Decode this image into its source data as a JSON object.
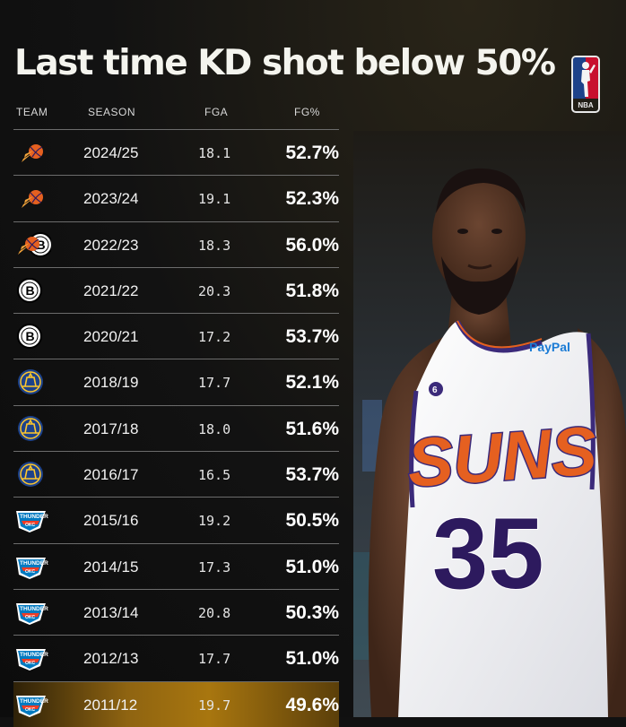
{
  "title": "Last time KD shot below 50%",
  "badge": {
    "text": "NBA",
    "icon": "nba-logo-icon"
  },
  "headers": {
    "team": "TEAM",
    "season": "SEASON",
    "fga": "FGA",
    "fg": "FG%"
  },
  "rows": [
    {
      "team": "suns",
      "season": "2024/25",
      "fga": "18.1",
      "fg": "52.7%"
    },
    {
      "team": "suns",
      "season": "2023/24",
      "fga": "19.1",
      "fg": "52.3%"
    },
    {
      "team": "suns-nets",
      "season": "2022/23",
      "fga": "18.3",
      "fg": "56.0%"
    },
    {
      "team": "nets",
      "season": "2021/22",
      "fga": "20.3",
      "fg": "51.8%"
    },
    {
      "team": "nets",
      "season": "2020/21",
      "fga": "17.2",
      "fg": "53.7%"
    },
    {
      "team": "warriors",
      "season": "2018/19",
      "fga": "17.7",
      "fg": "52.1%"
    },
    {
      "team": "warriors",
      "season": "2017/18",
      "fga": "18.0",
      "fg": "51.6%"
    },
    {
      "team": "warriors",
      "season": "2016/17",
      "fga": "16.5",
      "fg": "53.7%"
    },
    {
      "team": "thunder",
      "season": "2015/16",
      "fga": "19.2",
      "fg": "50.5%"
    },
    {
      "team": "thunder",
      "season": "2014/15",
      "fga": "17.3",
      "fg": "51.0%"
    },
    {
      "team": "thunder",
      "season": "2013/14",
      "fga": "20.8",
      "fg": "50.3%"
    },
    {
      "team": "thunder",
      "season": "2012/13",
      "fga": "17.7",
      "fg": "51.0%"
    },
    {
      "team": "thunder",
      "season": "2011/12",
      "fga": "19.7",
      "fg": "49.6%",
      "highlight": true
    }
  ],
  "photo": {
    "jersey_wordmark": "SUNS",
    "jersey_number": "35",
    "sponsor": "PayPal",
    "patch": "6"
  },
  "colors": {
    "highlight": "#a8760f",
    "suns_orange": "#e56020",
    "suns_purple": "#2d1a5e",
    "warriors_blue": "#1d428a",
    "warriors_gold": "#ffc72c",
    "thunder_blue": "#007ac1",
    "thunder_orange": "#ef3b24"
  }
}
